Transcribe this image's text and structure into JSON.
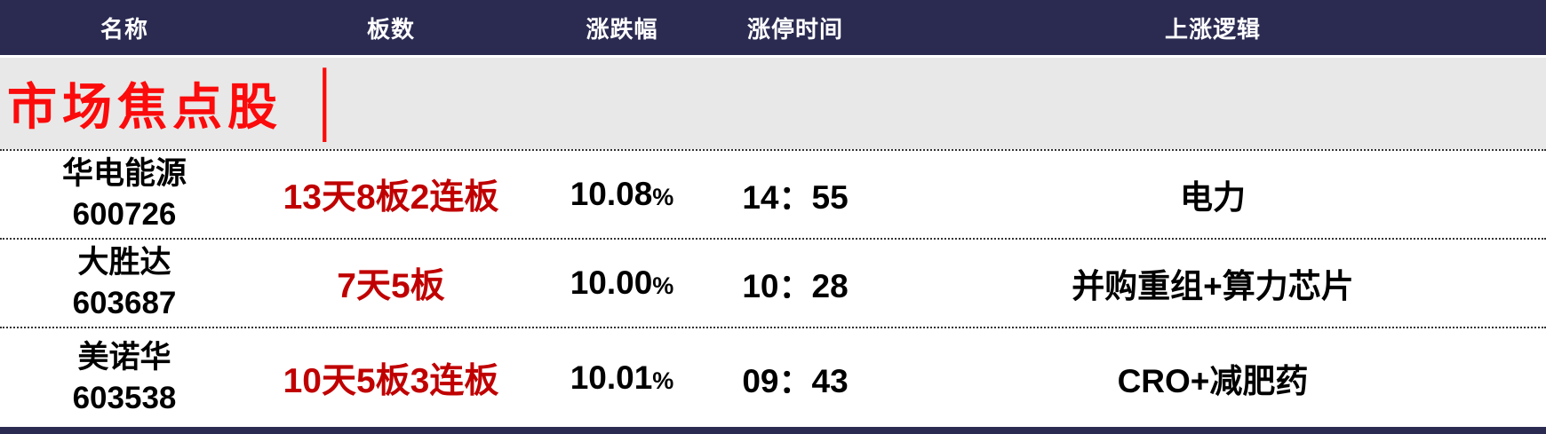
{
  "table": {
    "headers": [
      "名称",
      "板数",
      "涨跌幅",
      "涨停时间",
      "上涨逻辑"
    ],
    "section_title": {
      "text": "市场焦点股",
      "bar": "│"
    },
    "rows": [
      {
        "name": "华电能源",
        "code": "600726",
        "boards": "13天8板2连板",
        "change_value": "10.08",
        "change_unit": "%",
        "limit_up_time": "14：55",
        "logic": "电力"
      },
      {
        "name": "大胜达",
        "code": "603687",
        "boards": "7天5板",
        "change_value": "10.00",
        "change_unit": "%",
        "limit_up_time": "10：28",
        "logic": "并购重组+算力芯片"
      },
      {
        "name": "美诺华",
        "code": "603538",
        "boards": "10天5板3连板",
        "change_value": "10.01",
        "change_unit": "%",
        "limit_up_time": "09：43",
        "logic": "CRO+减肥药"
      }
    ]
  },
  "colors": {
    "header_bg": "#2b2b52",
    "header_text": "#ffffff",
    "section_bg": "#e8e8e8",
    "title_red": "#fb0b0b",
    "boards_red": "#c00000",
    "data_text": "#000000",
    "row_bg": "#ffffff"
  }
}
